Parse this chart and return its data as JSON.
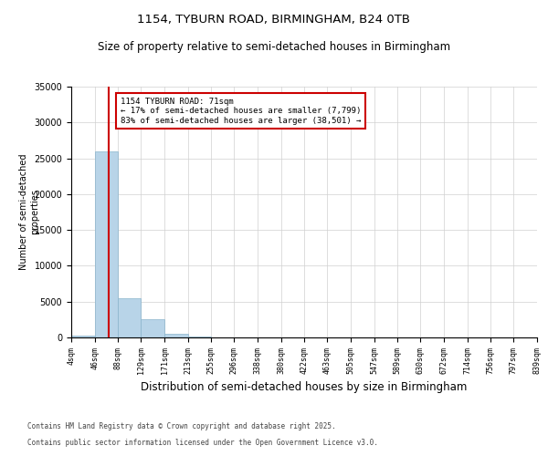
{
  "title1": "1154, TYBURN ROAD, BIRMINGHAM, B24 0TB",
  "title2": "Size of property relative to semi-detached houses in Birmingham",
  "xlabel": "Distribution of semi-detached houses by size in Birmingham",
  "ylabel": "Number of semi-detached\nproperties",
  "annotation_title": "1154 TYBURN ROAD: 71sqm",
  "annotation_line1": "← 17% of semi-detached houses are smaller (7,799)",
  "annotation_line2": "83% of semi-detached houses are larger (38,501) →",
  "footer1": "Contains HM Land Registry data © Crown copyright and database right 2025.",
  "footer2": "Contains public sector information licensed under the Open Government Licence v3.0.",
  "bar_edges": [
    4,
    46,
    88,
    129,
    171,
    213,
    255,
    296,
    338,
    380,
    422,
    463,
    505,
    547,
    589,
    630,
    672,
    714,
    756,
    797,
    839
  ],
  "bar_heights": [
    200,
    26000,
    5500,
    2500,
    500,
    80,
    30,
    15,
    10,
    8,
    5,
    4,
    3,
    2,
    2,
    1,
    1,
    1,
    1,
    1
  ],
  "tick_labels": [
    "4sqm",
    "46sqm",
    "88sqm",
    "129sqm",
    "171sqm",
    "213sqm",
    "255sqm",
    "296sqm",
    "338sqm",
    "380sqm",
    "422sqm",
    "463sqm",
    "505sqm",
    "547sqm",
    "589sqm",
    "630sqm",
    "672sqm",
    "714sqm",
    "756sqm",
    "797sqm",
    "839sqm"
  ],
  "property_size": 71,
  "bar_color": "#b8d4e8",
  "bar_edge_color": "#8ab4cc",
  "vline_color": "#cc0000",
  "annotation_box_color": "#cc0000",
  "background_color": "#ffffff",
  "grid_color": "#d0d0d0",
  "ylim": [
    0,
    35000
  ],
  "yticks": [
    0,
    5000,
    10000,
    15000,
    20000,
    25000,
    30000,
    35000
  ]
}
